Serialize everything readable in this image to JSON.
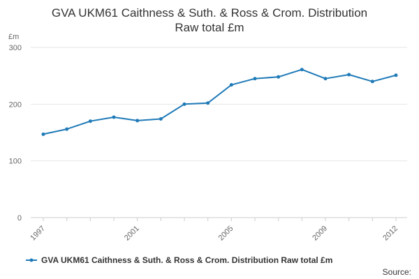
{
  "chart_data": {
    "type": "line",
    "title": "GVA UKM61 Caithness & Suth. & Ross & Crom. Distribution",
    "subtitle": "Raw total £m",
    "ylabel": "£m",
    "xlabel": "",
    "x": [
      1997,
      1998,
      1999,
      2000,
      2001,
      2002,
      2003,
      2004,
      2005,
      2006,
      2007,
      2008,
      2009,
      2010,
      2011,
      2012
    ],
    "x_tick_labels": [
      "1997",
      "2001",
      "2005",
      "2009",
      "2012"
    ],
    "y_tick_labels": [
      "0",
      "100",
      "200",
      "300"
    ],
    "ylim": [
      0,
      300
    ],
    "grid": true,
    "legend_position": "bottom",
    "series": [
      {
        "name": "GVA UKM61 Caithness & Suth. & Ross & Crom. Distribution Raw total £m",
        "color": "#1f7ab8",
        "values": [
          147,
          156,
          170,
          177,
          171,
          174,
          200,
          202,
          234,
          245,
          248,
          261,
          245,
          252,
          240,
          251
        ]
      }
    ]
  },
  "source_label": "Source:"
}
